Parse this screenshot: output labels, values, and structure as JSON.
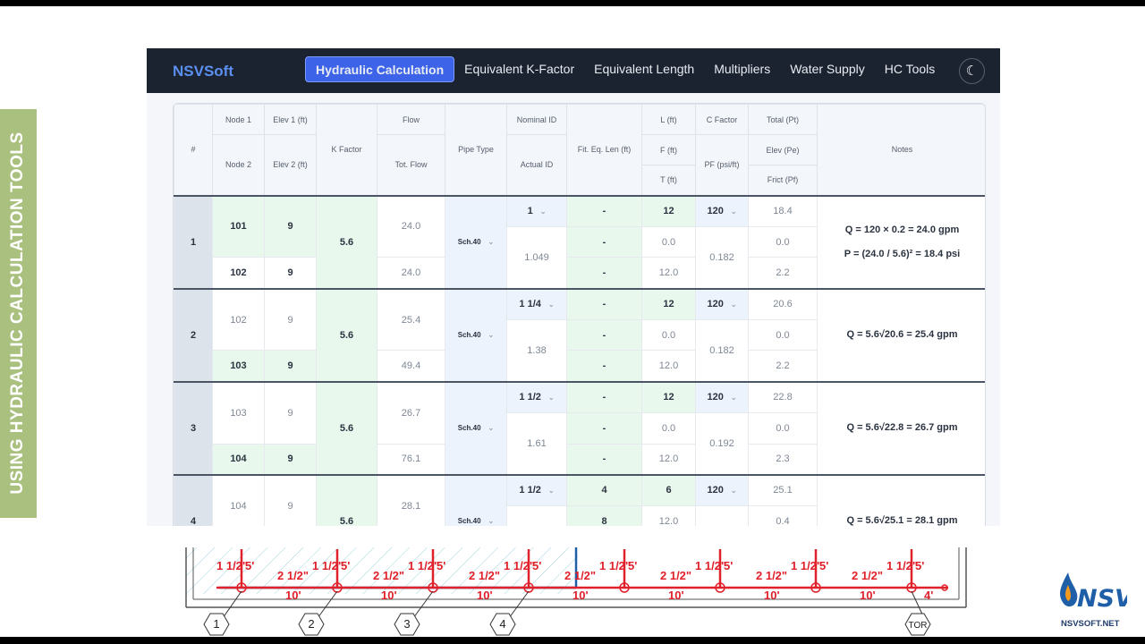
{
  "side_banner": {
    "text": "USING HYDRAULIC CALCULATION TOOLS"
  },
  "app": {
    "brand": "NSVSoft",
    "nav": [
      {
        "label": "Hydraulic Calculation",
        "active": true
      },
      {
        "label": "Equivalent K-Factor",
        "active": false
      },
      {
        "label": "Equivalent Length",
        "active": false
      },
      {
        "label": "Multipliers",
        "active": false
      },
      {
        "label": "Water Supply",
        "active": false
      },
      {
        "label": "HC Tools",
        "active": false
      }
    ],
    "theme_icon": "moon-icon"
  },
  "table": {
    "headers": {
      "idx": "#",
      "node1": "Node 1",
      "node2": "Node 2",
      "elev1": "Elev 1 (ft)",
      "elev2": "Elev 2 (ft)",
      "k": "K Factor",
      "flow": "Flow",
      "totflow": "Tot. Flow",
      "pipe": "Pipe Type",
      "nominal": "Nominal ID",
      "actual": "Actual ID",
      "fiteq": "Fit. Eq. Len (ft)",
      "l": "L (ft)",
      "f": "F (ft)",
      "t": "T (ft)",
      "c": "C Factor",
      "pf": "PF (psi/ft)",
      "total": "Total (Pt)",
      "elevp": "Elev (Pe)",
      "frict": "Frict (Pf)",
      "notes": "Notes"
    },
    "rows": [
      {
        "idx": "1",
        "node1": "101",
        "node2": "102",
        "elev1": "9",
        "elev2": "9",
        "k": "5.6",
        "flow": "24.0",
        "totflow": "24.0",
        "pipe": "Sch.40",
        "nominal": "1",
        "actual": "1.049",
        "fit": [
          "-",
          "-",
          "-"
        ],
        "l": "12",
        "f": "0.0",
        "t": "12.0",
        "c": "120",
        "pf": "0.182",
        "total": "18.4",
        "elevp": "0.0",
        "frict": "2.2",
        "notes": [
          "Q = 120 × 0.2 = 24.0 gpm",
          "P = (24.0 / 5.6)² = 18.4 psi"
        ]
      },
      {
        "idx": "2",
        "node1": "102",
        "node2": "103",
        "elev1": "9",
        "elev2": "9",
        "k": "5.6",
        "flow": "25.4",
        "totflow": "49.4",
        "pipe": "Sch.40",
        "nominal": "1 1/4",
        "actual": "1.38",
        "fit": [
          "-",
          "-",
          "-"
        ],
        "l": "12",
        "f": "0.0",
        "t": "12.0",
        "c": "120",
        "pf": "0.182",
        "total": "20.6",
        "elevp": "0.0",
        "frict": "2.2",
        "notes": [
          "Q = 5.6√20.6 = 25.4 gpm"
        ]
      },
      {
        "idx": "3",
        "node1": "103",
        "node2": "104",
        "elev1": "9",
        "elev2": "9",
        "k": "5.6",
        "flow": "26.7",
        "totflow": "76.1",
        "pipe": "Sch.40",
        "nominal": "1 1/2",
        "actual": "1.61",
        "fit": [
          "-",
          "-",
          "-"
        ],
        "l": "12",
        "f": "0.0",
        "t": "12.0",
        "c": "120",
        "pf": "0.192",
        "total": "22.8",
        "elevp": "0.0",
        "frict": "2.3",
        "notes": [
          "Q = 5.6√22.8 = 26.7 gpm"
        ]
      },
      {
        "idx": "4",
        "node1": "104",
        "node2": "",
        "elev1": "9",
        "elev2": "",
        "k": "5.6",
        "flow": "28.1",
        "totflow": "",
        "pipe": "Sch.40",
        "nominal": "1 1/2",
        "actual": "",
        "fit": [
          "4",
          "8",
          ""
        ],
        "l": "6",
        "f": "12.0",
        "t": "",
        "c": "120",
        "pf": "",
        "total": "25.1",
        "elevp": "0.4",
        "frict": "",
        "notes": [
          "Q = 5.6√25.1 = 28.1 gpm"
        ]
      }
    ]
  },
  "diagram": {
    "branch_labels": [
      "1 1/2\"",
      "2 1/2\""
    ],
    "drop_label": "5'",
    "segment_label": "10'",
    "last_segment_label": "4'",
    "nodes": [
      "1",
      "2",
      "3",
      "4",
      "TOR"
    ]
  },
  "logo": {
    "text": "NSV",
    "url_text": "NSVSOFT.NET"
  },
  "colors": {
    "navbar": "#1b2230",
    "accent": "#3c63e8",
    "banner": "#a9c07e",
    "pipe": "#e0202a"
  }
}
